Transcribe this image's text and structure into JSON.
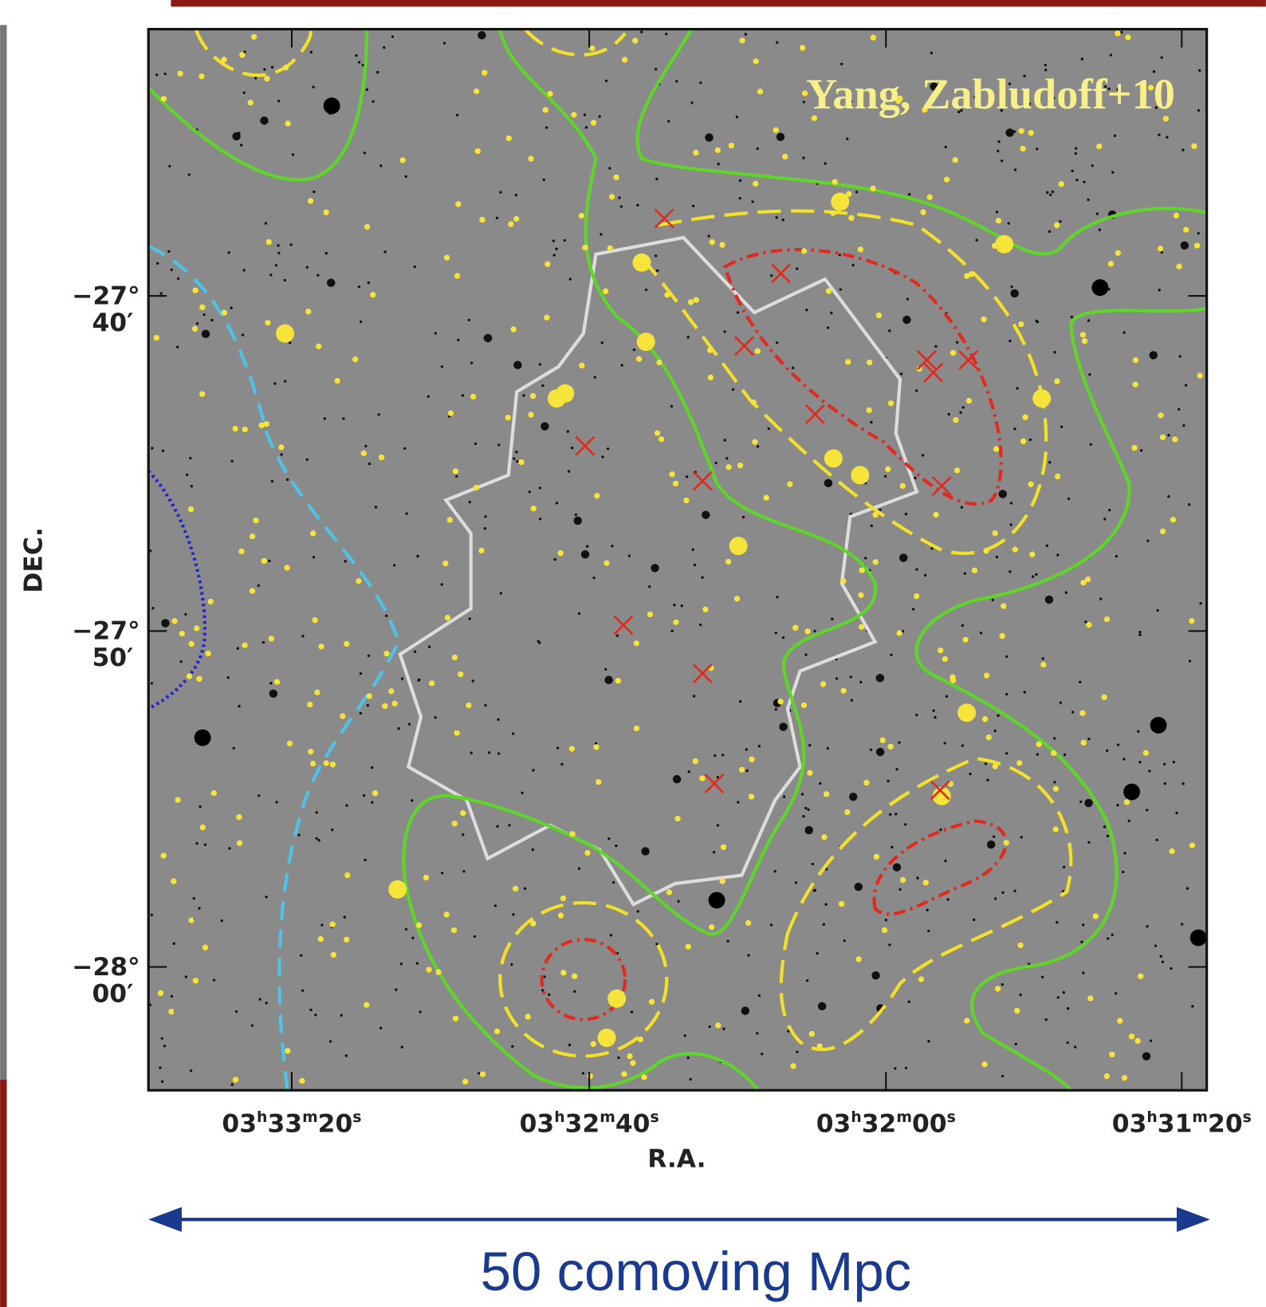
{
  "credit": "Yang, Zabludoff+10",
  "y_axis": {
    "label": "DEC.",
    "ticks": [
      {
        "degrees": "−27°",
        "minutes": "40′"
      },
      {
        "degrees": "−27°",
        "minutes": "50′"
      },
      {
        "degrees": "−28°",
        "minutes": "00′"
      }
    ]
  },
  "x_axis": {
    "label": "R.A.",
    "ticks": [
      [
        "03",
        "h",
        "33",
        "m",
        "20",
        "s"
      ],
      [
        "03",
        "h",
        "32",
        "m",
        "40",
        "s"
      ],
      [
        "03",
        "h",
        "32",
        "m",
        "00",
        "s"
      ],
      [
        "03",
        "h",
        "31",
        "m",
        "20",
        "s"
      ]
    ]
  },
  "scale_bar": {
    "label": "50 comoving Mpc"
  }
}
